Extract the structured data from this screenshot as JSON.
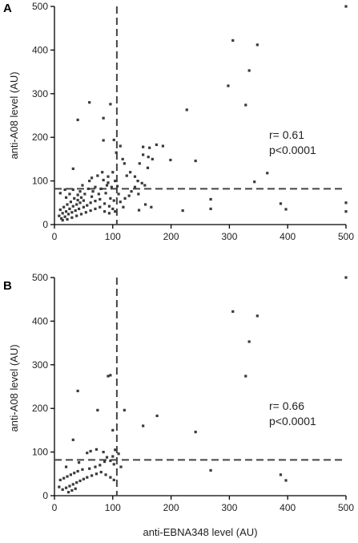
{
  "chart_data": [
    {
      "type": "scatter",
      "panel_label": "A",
      "xlabel": "",
      "ylabel": "anti-A08 level (AU)",
      "xlim": [
        0,
        500
      ],
      "ylim": [
        0,
        500
      ],
      "xticks": [
        "0",
        "100",
        "200",
        "300",
        "400",
        "500"
      ],
      "yticks": [
        "0",
        "100",
        "200",
        "300",
        "400",
        "500"
      ],
      "threshold_x": 107,
      "threshold_y": 82,
      "annotation": {
        "r": "r= 0.61",
        "p": "p<0.0001"
      },
      "points": [
        [
          306,
          422
        ],
        [
          348,
          412
        ],
        [
          334,
          353
        ],
        [
          298,
          318
        ],
        [
          328,
          274
        ],
        [
          500,
          500
        ],
        [
          60,
          280
        ],
        [
          96,
          276
        ],
        [
          84,
          244
        ],
        [
          40,
          240
        ],
        [
          102,
          194
        ],
        [
          84,
          193
        ],
        [
          227,
          263
        ],
        [
          175,
          183
        ],
        [
          186,
          180
        ],
        [
          163,
          176
        ],
        [
          152,
          178
        ],
        [
          152,
          160
        ],
        [
          161,
          155
        ],
        [
          168,
          150
        ],
        [
          199,
          148
        ],
        [
          242,
          146
        ],
        [
          146,
          140
        ],
        [
          160,
          130
        ],
        [
          113,
          180
        ],
        [
          106,
          165
        ],
        [
          117,
          150
        ],
        [
          120,
          140
        ],
        [
          130,
          120
        ],
        [
          124,
          112
        ],
        [
          138,
          110
        ],
        [
          143,
          100
        ],
        [
          150,
          95
        ],
        [
          155,
          90
        ],
        [
          138,
          86
        ],
        [
          132,
          76
        ],
        [
          144,
          70
        ],
        [
          128,
          66
        ],
        [
          121,
          60
        ],
        [
          113,
          52
        ],
        [
          118,
          40
        ],
        [
          145,
          33
        ],
        [
          156,
          46
        ],
        [
          166,
          40
        ],
        [
          220,
          32
        ],
        [
          268,
          58
        ],
        [
          268,
          36
        ],
        [
          343,
          98
        ],
        [
          365,
          118
        ],
        [
          388,
          48
        ],
        [
          397,
          35
        ],
        [
          500,
          50
        ],
        [
          500,
          30
        ],
        [
          32,
          128
        ],
        [
          60,
          100
        ],
        [
          64,
          107
        ],
        [
          74,
          112
        ],
        [
          84,
          102
        ],
        [
          92,
          110
        ],
        [
          100,
          120
        ],
        [
          104,
          100
        ],
        [
          98,
          86
        ],
        [
          90,
          90
        ],
        [
          80,
          82
        ],
        [
          70,
          86
        ],
        [
          66,
          76
        ],
        [
          76,
          70
        ],
        [
          88,
          72
        ],
        [
          96,
          60
        ],
        [
          102,
          55
        ],
        [
          110,
          70
        ],
        [
          108,
          88
        ],
        [
          52,
          70
        ],
        [
          46,
          62
        ],
        [
          40,
          56
        ],
        [
          34,
          60
        ],
        [
          28,
          52
        ],
        [
          22,
          46
        ],
        [
          16,
          40
        ],
        [
          10,
          34
        ],
        [
          8,
          20
        ],
        [
          12,
          14
        ],
        [
          18,
          18
        ],
        [
          24,
          24
        ],
        [
          30,
          28
        ],
        [
          36,
          32
        ],
        [
          42,
          36
        ],
        [
          50,
          40
        ],
        [
          56,
          44
        ],
        [
          62,
          50
        ],
        [
          70,
          54
        ],
        [
          78,
          58
        ],
        [
          86,
          48
        ],
        [
          94,
          42
        ],
        [
          100,
          36
        ],
        [
          104,
          30
        ],
        [
          20,
          62
        ],
        [
          26,
          70
        ],
        [
          32,
          80
        ],
        [
          44,
          76
        ],
        [
          48,
          90
        ],
        [
          58,
          82
        ],
        [
          14,
          26
        ],
        [
          20,
          30
        ],
        [
          26,
          36
        ],
        [
          32,
          42
        ],
        [
          38,
          46
        ],
        [
          44,
          50
        ],
        [
          50,
          55
        ],
        [
          14,
          10
        ],
        [
          22,
          12
        ],
        [
          30,
          16
        ],
        [
          38,
          20
        ],
        [
          46,
          24
        ],
        [
          54,
          28
        ],
        [
          62,
          32
        ],
        [
          70,
          36
        ],
        [
          78,
          40
        ],
        [
          86,
          30
        ],
        [
          94,
          26
        ],
        [
          18,
          80
        ],
        [
          10,
          72
        ],
        [
          40,
          68
        ],
        [
          64,
          64
        ],
        [
          92,
          96
        ],
        [
          82,
          120
        ]
      ]
    },
    {
      "type": "scatter",
      "panel_label": "B",
      "xlabel": "anti-EBNA348 level (AU)",
      "ylabel": "anti-A08 level (AU)",
      "xlim": [
        0,
        500
      ],
      "ylim": [
        0,
        500
      ],
      "xticks": [
        "0",
        "100",
        "200",
        "300",
        "400",
        "500"
      ],
      "yticks": [
        "0",
        "100",
        "200",
        "300",
        "400",
        "500"
      ],
      "threshold_x": 107,
      "threshold_y": 82,
      "annotation": {
        "r": "r= 0.66",
        "p": "p<0.0001"
      },
      "points": [
        [
          500,
          500
        ],
        [
          306,
          422
        ],
        [
          348,
          412
        ],
        [
          334,
          353
        ],
        [
          328,
          274
        ],
        [
          96,
          276
        ],
        [
          92,
          274
        ],
        [
          40,
          240
        ],
        [
          74,
          196
        ],
        [
          120,
          196
        ],
        [
          176,
          183
        ],
        [
          152,
          160
        ],
        [
          242,
          146
        ],
        [
          100,
          150
        ],
        [
          32,
          128
        ],
        [
          104,
          105
        ],
        [
          110,
          96
        ],
        [
          100,
          90
        ],
        [
          90,
          88
        ],
        [
          84,
          100
        ],
        [
          72,
          106
        ],
        [
          62,
          102
        ],
        [
          56,
          98
        ],
        [
          86,
          78
        ],
        [
          96,
          80
        ],
        [
          102,
          72
        ],
        [
          78,
          70
        ],
        [
          70,
          66
        ],
        [
          60,
          62
        ],
        [
          48,
          60
        ],
        [
          40,
          56
        ],
        [
          34,
          52
        ],
        [
          28,
          48
        ],
        [
          22,
          44
        ],
        [
          16,
          40
        ],
        [
          10,
          36
        ],
        [
          8,
          20
        ],
        [
          14,
          14
        ],
        [
          20,
          18
        ],
        [
          26,
          22
        ],
        [
          32,
          26
        ],
        [
          38,
          30
        ],
        [
          44,
          34
        ],
        [
          50,
          38
        ],
        [
          56,
          42
        ],
        [
          64,
          46
        ],
        [
          72,
          50
        ],
        [
          80,
          54
        ],
        [
          88,
          48
        ],
        [
          96,
          42
        ],
        [
          102,
          36
        ],
        [
          30,
          12
        ],
        [
          36,
          16
        ],
        [
          24,
          8
        ],
        [
          20,
          66
        ],
        [
          42,
          76
        ],
        [
          114,
          66
        ],
        [
          268,
          58
        ],
        [
          388,
          48
        ],
        [
          397,
          35
        ]
      ]
    }
  ]
}
